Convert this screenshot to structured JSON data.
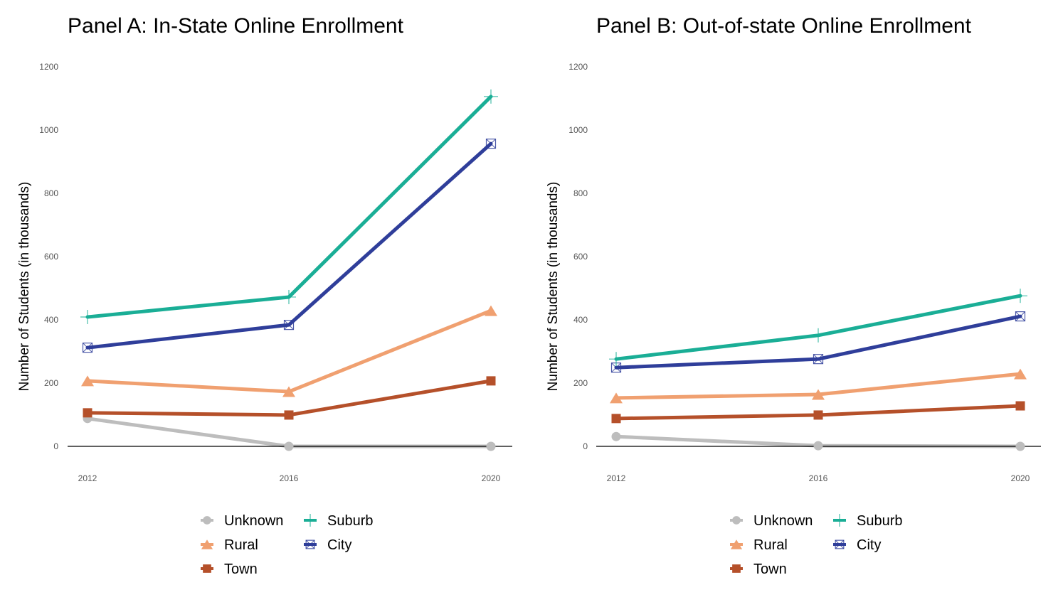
{
  "chart_data": [
    {
      "type": "line",
      "title": "Panel A: In-State Online Enrollment",
      "xlabel": "",
      "ylabel": "Number of Students (in thousands)",
      "x": [
        "2012",
        "2016",
        "2020"
      ],
      "yticks": [
        "0",
        "200",
        "400",
        "600",
        "800",
        "1000",
        "1200"
      ],
      "ylim": [
        0,
        1200
      ],
      "grid": false,
      "legend_position": "bottom",
      "series": [
        {
          "name": "Unknown",
          "values": [
            88,
            0,
            0
          ],
          "color": "#bdbdbd",
          "marker": "circle"
        },
        {
          "name": "Rural",
          "values": [
            207,
            173,
            429
          ],
          "color": "#f0a070",
          "marker": "triangle"
        },
        {
          "name": "Town",
          "values": [
            106,
            99,
            207
          ],
          "color": "#b5502a",
          "marker": "square"
        },
        {
          "name": "Suburb",
          "values": [
            409,
            472,
            1106
          ],
          "color": "#1aae96",
          "marker": "plus"
        },
        {
          "name": "City",
          "values": [
            312,
            384,
            957
          ],
          "color": "#2f3e9a",
          "marker": "square-x"
        }
      ]
    },
    {
      "type": "line",
      "title": "Panel B: Out-of-state Online Enrollment",
      "xlabel": "",
      "ylabel": "Number of Students (in thousands)",
      "x": [
        "2012",
        "2016",
        "2020"
      ],
      "yticks": [
        "0",
        "200",
        "400",
        "600",
        "800",
        "1000",
        "1200"
      ],
      "ylim": [
        0,
        1200
      ],
      "grid": false,
      "legend_position": "bottom",
      "series": [
        {
          "name": "Unknown",
          "values": [
            31,
            2,
            0
          ],
          "color": "#bdbdbd",
          "marker": "circle"
        },
        {
          "name": "Rural",
          "values": [
            153,
            164,
            229
          ],
          "color": "#f0a070",
          "marker": "triangle"
        },
        {
          "name": "Town",
          "values": [
            88,
            99,
            128
          ],
          "color": "#b5502a",
          "marker": "square"
        },
        {
          "name": "Suburb",
          "values": [
            276,
            351,
            476
          ],
          "color": "#1aae96",
          "marker": "plus"
        },
        {
          "name": "City",
          "values": [
            249,
            276,
            411
          ],
          "color": "#2f3e9a",
          "marker": "square-x"
        }
      ]
    }
  ]
}
